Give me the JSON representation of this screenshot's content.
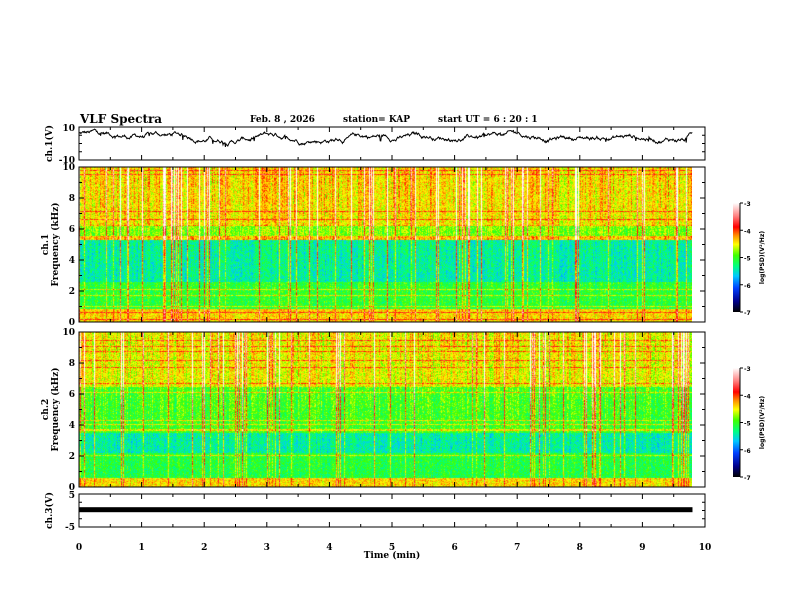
{
  "header": {
    "title": "VLF Spectra",
    "date": "Feb. 8  , 2026",
    "station": "station= KAP",
    "start": "start  UT  =   6  : 20 : 1"
  },
  "colors": {
    "frame": "#000000",
    "background": "#ffffff"
  },
  "chart_data": [
    {
      "type": "line",
      "name": "ch1-waveform",
      "ylabel": "ch.1(V)",
      "ylim": [
        -10,
        10
      ],
      "ytick_labels": [
        "10",
        "-10"
      ],
      "xlim": [
        0,
        10
      ],
      "data_extent_min": 9.8,
      "trace_note": "noisy waveform fluctuating roughly between 0 and 9 V"
    },
    {
      "type": "heatmap",
      "name": "ch1-spectrogram",
      "ylabel_line1": "ch.1",
      "ylabel_line2": "Frequency  (kHz)",
      "ylim": [
        0,
        10
      ],
      "ytick_labels": [
        "0",
        "2",
        "4",
        "6",
        "8",
        "10"
      ],
      "yticks": [
        0,
        2,
        4,
        6,
        8,
        10
      ],
      "xlim": [
        0,
        10
      ],
      "colorbar": {
        "label": "log(PSD)(V²/Hz)",
        "range": [
          -7,
          -3
        ],
        "tick_labels": [
          "-3",
          "-4",
          "-5",
          "-6",
          "-7"
        ],
        "ticks": [
          -3,
          -4,
          -5,
          -6,
          -7
        ]
      }
    },
    {
      "type": "heatmap",
      "name": "ch2-spectrogram",
      "ylabel_line1": "ch.2",
      "ylabel_line2": "Frequency  (kHz)",
      "ylim": [
        0,
        10
      ],
      "ytick_labels": [
        "0",
        "2",
        "4",
        "6",
        "8",
        "10"
      ],
      "yticks": [
        0,
        2,
        4,
        6,
        8,
        10
      ],
      "xlim": [
        0,
        10
      ],
      "colorbar": {
        "label": "log(PSD)(V²/Hz)",
        "range": [
          -7,
          -3
        ],
        "tick_labels": [
          "-3",
          "-4",
          "-5",
          "-6",
          "-7"
        ],
        "ticks": [
          -3,
          -4,
          -5,
          -6,
          -7
        ]
      }
    },
    {
      "type": "line",
      "name": "ch3-waveform",
      "ylabel": "ch.3(V)",
      "ylim": [
        -5,
        5
      ],
      "ytick_labels": [
        "5",
        "-5"
      ],
      "level_band": [
        1.0,
        0.2
      ],
      "xlim": [
        0,
        10
      ],
      "xlabel": "Time  (min)",
      "xtick_labels": [
        "0",
        "1",
        "2",
        "3",
        "4",
        "5",
        "6",
        "7",
        "8",
        "9",
        "10"
      ],
      "xticks": [
        0,
        1,
        2,
        3,
        4,
        5,
        6,
        7,
        8,
        9,
        10
      ]
    }
  ]
}
